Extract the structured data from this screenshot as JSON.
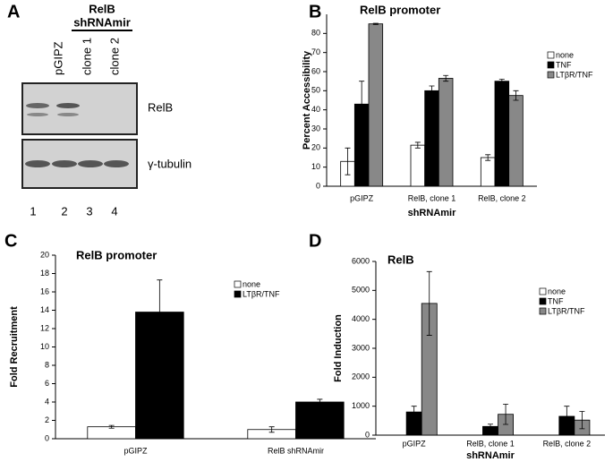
{
  "blot": {
    "panel": "A",
    "group_title": "RelB",
    "group_subtitle": "shRNAmir",
    "lanes": [
      "pGIPZ",
      "clone 1",
      "clone 2"
    ],
    "rows": [
      "RelB",
      "γ-tubulin"
    ],
    "lane_numbers": [
      "1",
      "2",
      "3",
      "4"
    ]
  },
  "chart_data": [
    {
      "type": "bar",
      "panel": "B",
      "title": "RelB promoter",
      "xlabel": "shRNAmir",
      "ylabel": "Percent Accessibility",
      "categories": [
        "pGIPZ",
        "RelB, clone 1",
        "RelB, clone 2"
      ],
      "series": [
        {
          "name": "none",
          "color": "#ffffff",
          "values": [
            13,
            21.5,
            15
          ],
          "errors": [
            7,
            1.5,
            1.5
          ]
        },
        {
          "name": "TNF",
          "color": "#000000",
          "values": [
            43,
            50,
            55
          ],
          "errors": [
            12,
            2.5,
            1
          ]
        },
        {
          "name": "LTβR/TNF",
          "color": "#888888",
          "values": [
            85,
            56.5,
            47.5
          ],
          "errors": [
            0.3,
            1.5,
            2.5
          ]
        }
      ],
      "ylim": [
        0,
        90
      ],
      "yticks": [
        0,
        10,
        20,
        30,
        40,
        50,
        60,
        70,
        80
      ]
    },
    {
      "type": "bar",
      "panel": "C",
      "title": "RelB promoter",
      "ylabel": "Fold Recruitment",
      "categories": [
        "pGIPZ",
        "RelB shRNAmir"
      ],
      "series": [
        {
          "name": "none",
          "color": "#ffffff",
          "values": [
            1.3,
            1.0
          ],
          "errors": [
            0.15,
            0.3
          ]
        },
        {
          "name": "LTβR/TNF",
          "color": "#000000",
          "values": [
            13.8,
            4.0
          ],
          "errors": [
            3.5,
            0.3
          ]
        }
      ],
      "ylim": [
        0,
        20
      ],
      "yticks": [
        0,
        2,
        4,
        6,
        8,
        10,
        12,
        14,
        16,
        18,
        20
      ]
    },
    {
      "type": "bar",
      "panel": "D",
      "title": "RelB",
      "xlabel": "shRNAmir",
      "ylabel": "Fold Induction",
      "categories": [
        "pGIPZ",
        "RelB, clone 1",
        "RelB, clone 2"
      ],
      "series": [
        {
          "name": "none",
          "color": "#ffffff",
          "values": [
            0,
            0,
            0
          ]
        },
        {
          "name": "TNF",
          "color": "#000000",
          "values": [
            800,
            300,
            650
          ],
          "errors": [
            200,
            80,
            350
          ]
        },
        {
          "name": "LTβR/TNF",
          "color": "#888888",
          "values": [
            4550,
            720,
            520
          ],
          "errors": [
            1100,
            350,
            300
          ]
        }
      ],
      "ylim": [
        0,
        6000
      ],
      "yticks": [
        0,
        1000,
        2000,
        3000,
        4000,
        5000,
        6000
      ]
    }
  ]
}
